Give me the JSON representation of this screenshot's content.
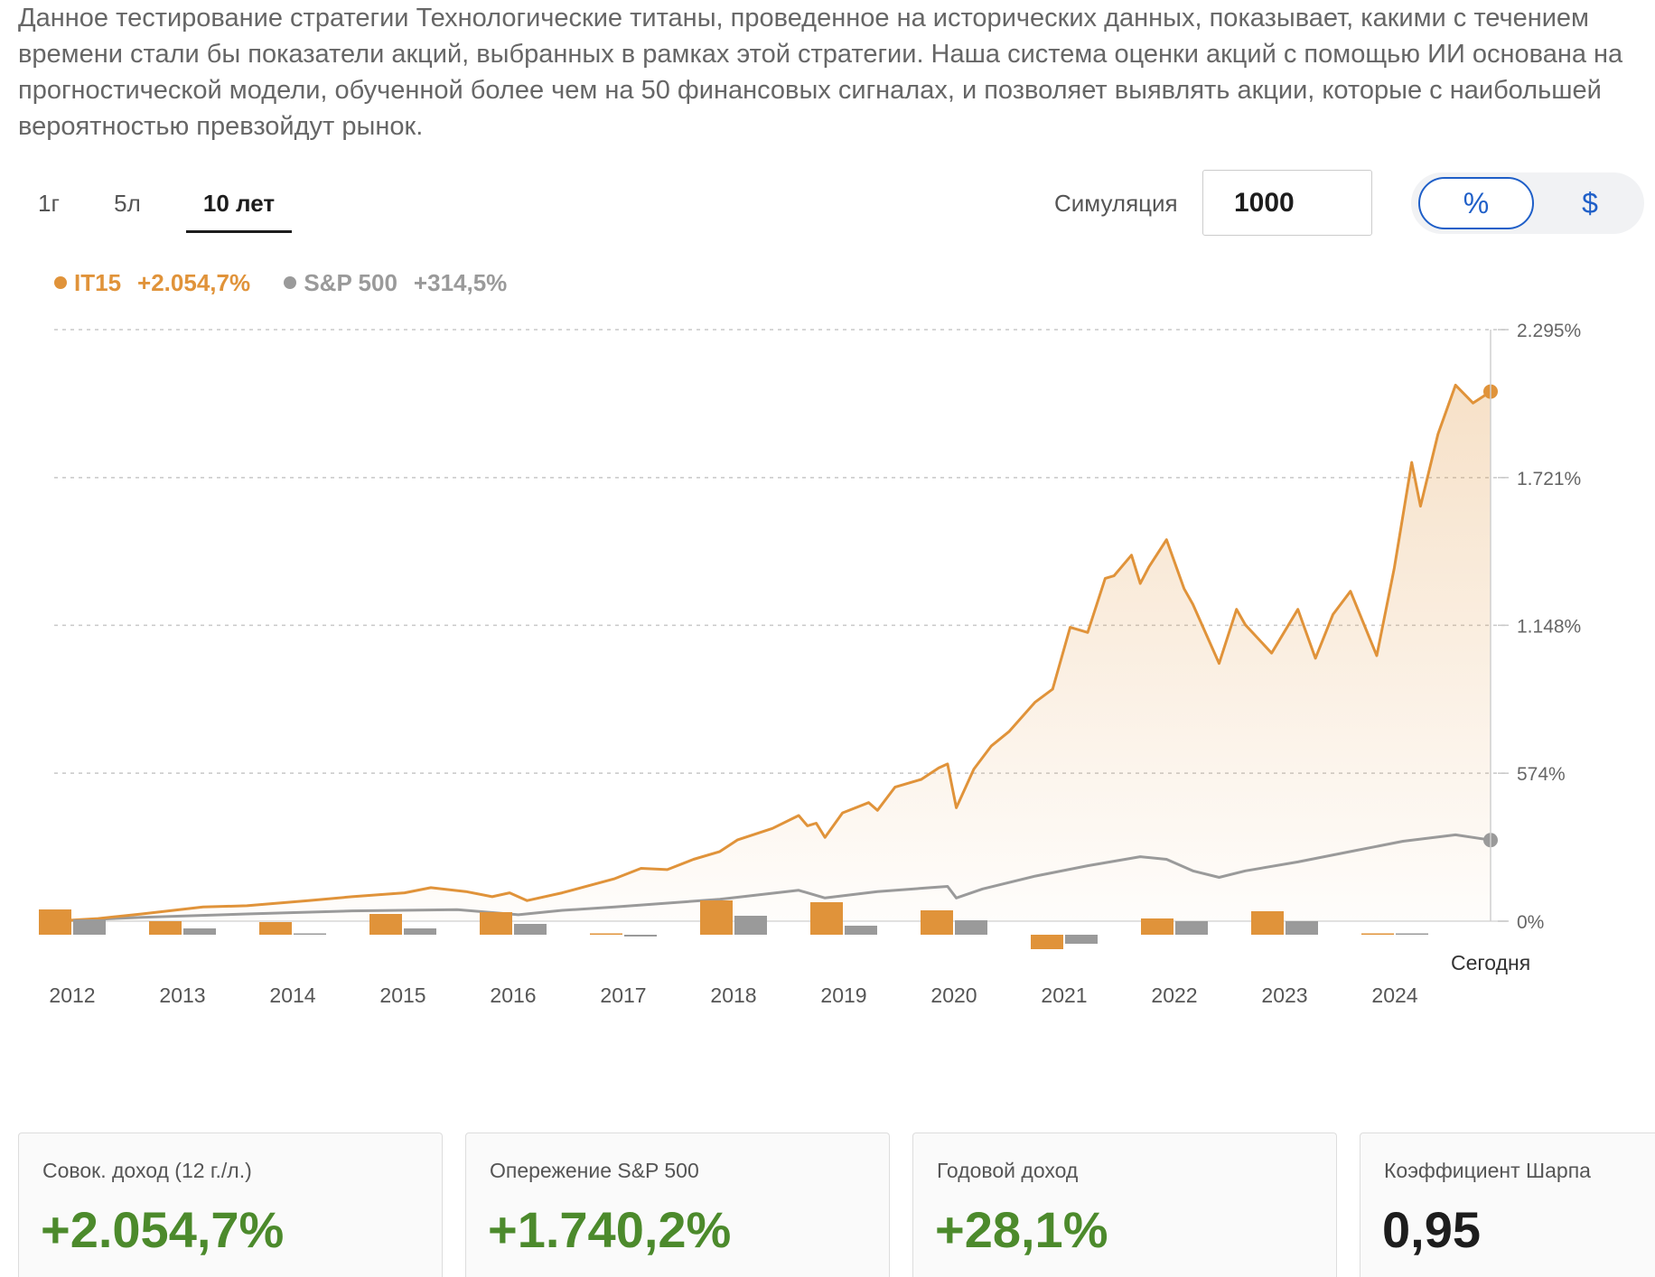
{
  "description": "Данное тестирование стратегии Технологические титаны, проведенное на исторических данных, показывает, какими с течением времени стали бы показатели акций, выбранных в рамках этой стратегии. Наша система оценки акций с помощью ИИ основана на прогностической модели, обученной более чем на 50 финансовых сигналах, и позволяет выявлять акции, которые с наибольшей вероятностью превзойдут рынок.",
  "period_tabs": [
    {
      "label": "1г",
      "active": false
    },
    {
      "label": "5л",
      "active": false
    },
    {
      "label": "10 лет",
      "active": true
    }
  ],
  "simulation": {
    "label": "Симуляция",
    "value": "1000"
  },
  "unit_toggle": {
    "options": [
      "%",
      "$"
    ],
    "selected": "%"
  },
  "legend": [
    {
      "name": "IT15",
      "value": "+2.054,7%",
      "color": "#e0933a"
    },
    {
      "name": "S&P 500",
      "value": "+314,5%",
      "color": "#9a9a9a"
    }
  ],
  "chart_data": {
    "type": "line",
    "y_ticks": [
      {
        "value": 0,
        "label": "0%"
      },
      {
        "value": 574,
        "label": "574%"
      },
      {
        "value": 1148,
        "label": "1.148%"
      },
      {
        "value": 1721,
        "label": "1.721%"
      },
      {
        "value": 2295,
        "label": "2.295%"
      }
    ],
    "ylim": [
      0,
      2295
    ],
    "x_start": "2011-08",
    "x_end": "2025-04",
    "grid": true,
    "series": [
      {
        "name": "IT15",
        "color": "#e0933a",
        "final": 2054.7,
        "points": [
          [
            "2011-08",
            0
          ],
          [
            "2012-01",
            10
          ],
          [
            "2012-06",
            28
          ],
          [
            "2013-01",
            55
          ],
          [
            "2013-06",
            60
          ],
          [
            "2014-01",
            80
          ],
          [
            "2014-06",
            95
          ],
          [
            "2014-12",
            110
          ],
          [
            "2015-03",
            130
          ],
          [
            "2015-07",
            115
          ],
          [
            "2015-10",
            95
          ],
          [
            "2015-12",
            110
          ],
          [
            "2016-02",
            80
          ],
          [
            "2016-06",
            110
          ],
          [
            "2016-12",
            165
          ],
          [
            "2017-03",
            205
          ],
          [
            "2017-06",
            200
          ],
          [
            "2017-09",
            240
          ],
          [
            "2017-12",
            270
          ],
          [
            "2018-02",
            315
          ],
          [
            "2018-06",
            360
          ],
          [
            "2018-09",
            410
          ],
          [
            "2018-10",
            370
          ],
          [
            "2018-11",
            380
          ],
          [
            "2018-12",
            325
          ],
          [
            "2019-02",
            420
          ],
          [
            "2019-05",
            460
          ],
          [
            "2019-06",
            430
          ],
          [
            "2019-08",
            520
          ],
          [
            "2019-11",
            550
          ],
          [
            "2020-01",
            595
          ],
          [
            "2020-02",
            610
          ],
          [
            "2020-03",
            440
          ],
          [
            "2020-05",
            590
          ],
          [
            "2020-07",
            680
          ],
          [
            "2020-09",
            735
          ],
          [
            "2020-12",
            850
          ],
          [
            "2021-02",
            900
          ],
          [
            "2021-04",
            1140
          ],
          [
            "2021-06",
            1120
          ],
          [
            "2021-08",
            1330
          ],
          [
            "2021-09",
            1340
          ],
          [
            "2021-11",
            1420
          ],
          [
            "2021-12",
            1310
          ],
          [
            "2022-01",
            1375
          ],
          [
            "2022-03",
            1480
          ],
          [
            "2022-05",
            1290
          ],
          [
            "2022-06",
            1230
          ],
          [
            "2022-09",
            1000
          ],
          [
            "2022-11",
            1210
          ],
          [
            "2022-12",
            1150
          ],
          [
            "2023-03",
            1040
          ],
          [
            "2023-06",
            1210
          ],
          [
            "2023-08",
            1020
          ],
          [
            "2023-10",
            1190
          ],
          [
            "2023-12",
            1280
          ],
          [
            "2024-03",
            1030
          ],
          [
            "2024-05",
            1370
          ],
          [
            "2024-07",
            1780
          ],
          [
            "2024-08",
            1610
          ],
          [
            "2024-10",
            1890
          ],
          [
            "2024-12",
            2080
          ],
          [
            "2025-02",
            2010
          ],
          [
            "2025-04",
            2054.7
          ]
        ]
      },
      {
        "name": "S&P 500",
        "color": "#9a9a9a",
        "final": 314.5,
        "points": [
          [
            "2011-08",
            0
          ],
          [
            "2012-06",
            15
          ],
          [
            "2013-06",
            28
          ],
          [
            "2014-06",
            40
          ],
          [
            "2015-06",
            45
          ],
          [
            "2016-01",
            25
          ],
          [
            "2016-06",
            42
          ],
          [
            "2016-12",
            55
          ],
          [
            "2017-12",
            85
          ],
          [
            "2018-09",
            120
          ],
          [
            "2018-12",
            90
          ],
          [
            "2019-06",
            115
          ],
          [
            "2019-12",
            130
          ],
          [
            "2020-02",
            135
          ],
          [
            "2020-03",
            90
          ],
          [
            "2020-06",
            125
          ],
          [
            "2020-12",
            175
          ],
          [
            "2021-06",
            215
          ],
          [
            "2021-12",
            250
          ],
          [
            "2022-03",
            240
          ],
          [
            "2022-06",
            195
          ],
          [
            "2022-09",
            170
          ],
          [
            "2022-12",
            195
          ],
          [
            "2023-06",
            230
          ],
          [
            "2023-12",
            270
          ],
          [
            "2024-06",
            310
          ],
          [
            "2024-12",
            335
          ],
          [
            "2025-04",
            314.5
          ]
        ]
      }
    ],
    "annual_returns": {
      "label_today": "Сегодня",
      "years": [
        "2012",
        "2013",
        "2014",
        "2015",
        "2016",
        "2017",
        "2018",
        "2019",
        "2020",
        "2021",
        "2022",
        "2023",
        "2024"
      ],
      "it15": [
        28,
        15,
        14,
        23,
        25,
        0.5,
        38,
        36,
        27,
        -16,
        18,
        26,
        1
      ],
      "sp500": [
        17,
        7,
        1.5,
        7,
        12,
        -2,
        21,
        10,
        16,
        -10,
        15,
        15,
        0.5
      ]
    }
  },
  "stats": [
    {
      "label": "Совок. доход (12 г./л.)",
      "value": "+2.054,7%",
      "color": "#4c8a2c"
    },
    {
      "label": "Опережение S&P 500",
      "value": "+1.740,2%",
      "color": "#4c8a2c"
    },
    {
      "label": "Годовой доход",
      "value": "+28,1%",
      "color": "#4c8a2c"
    },
    {
      "label": "Коэффициент Шарпа",
      "value": "0,95",
      "color": "#1d1d1d"
    }
  ]
}
